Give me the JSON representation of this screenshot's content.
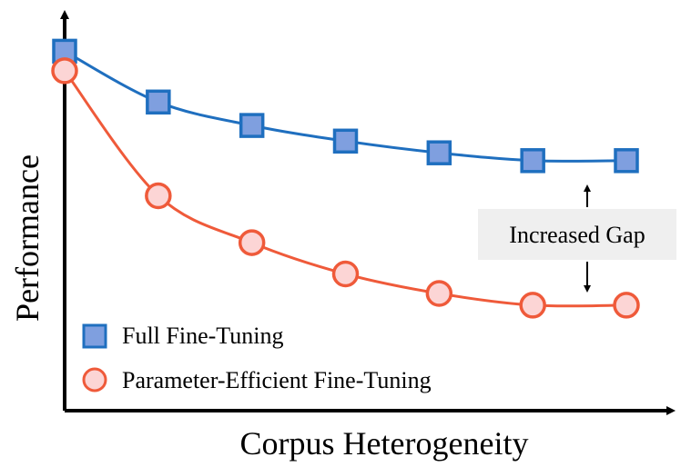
{
  "chart_data": {
    "type": "line",
    "xlabel": "Corpus Heterogeneity",
    "ylabel": "Performance",
    "x": [
      0,
      1,
      2,
      3,
      4,
      5,
      6
    ],
    "series": [
      {
        "name": "Full Fine-Tuning",
        "marker": "square",
        "color": "#1f6fbf",
        "fill": "#7f9fdf",
        "values": [
          0.92,
          0.79,
          0.73,
          0.69,
          0.66,
          0.64,
          0.64
        ]
      },
      {
        "name": "Parameter-Efficient Fine-Tuning",
        "marker": "circle",
        "color": "#ef5a3a",
        "fill": "#fcd5d5",
        "values": [
          0.87,
          0.55,
          0.43,
          0.35,
          0.3,
          0.27,
          0.27
        ]
      }
    ],
    "annotation": {
      "text": "Increased Gap",
      "at_x": 5.5
    },
    "legend": "bottom-left",
    "grid": false,
    "ticks": false
  }
}
